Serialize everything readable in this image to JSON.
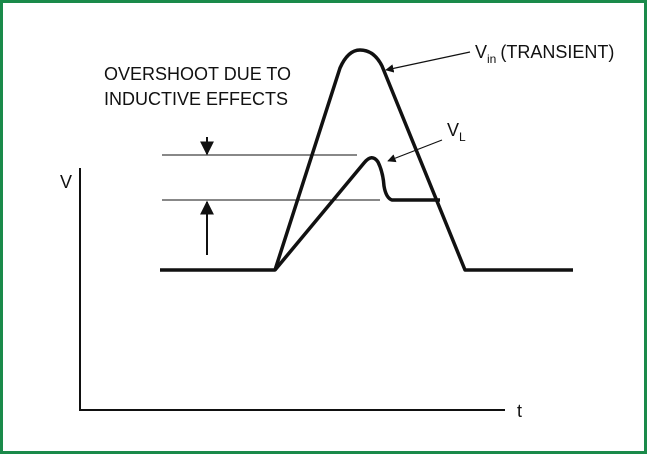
{
  "axes": {
    "y_label": "V",
    "x_label": "t"
  },
  "annotations": {
    "overshoot": [
      "OVERSHOOT DUE TO",
      "INDUCTIVE EFFECTS"
    ],
    "vin": {
      "symbol": "V",
      "subscript": "in",
      "note": "(TRANSIENT)"
    },
    "vl": {
      "symbol": "V",
      "subscript": "L"
    }
  }
}
